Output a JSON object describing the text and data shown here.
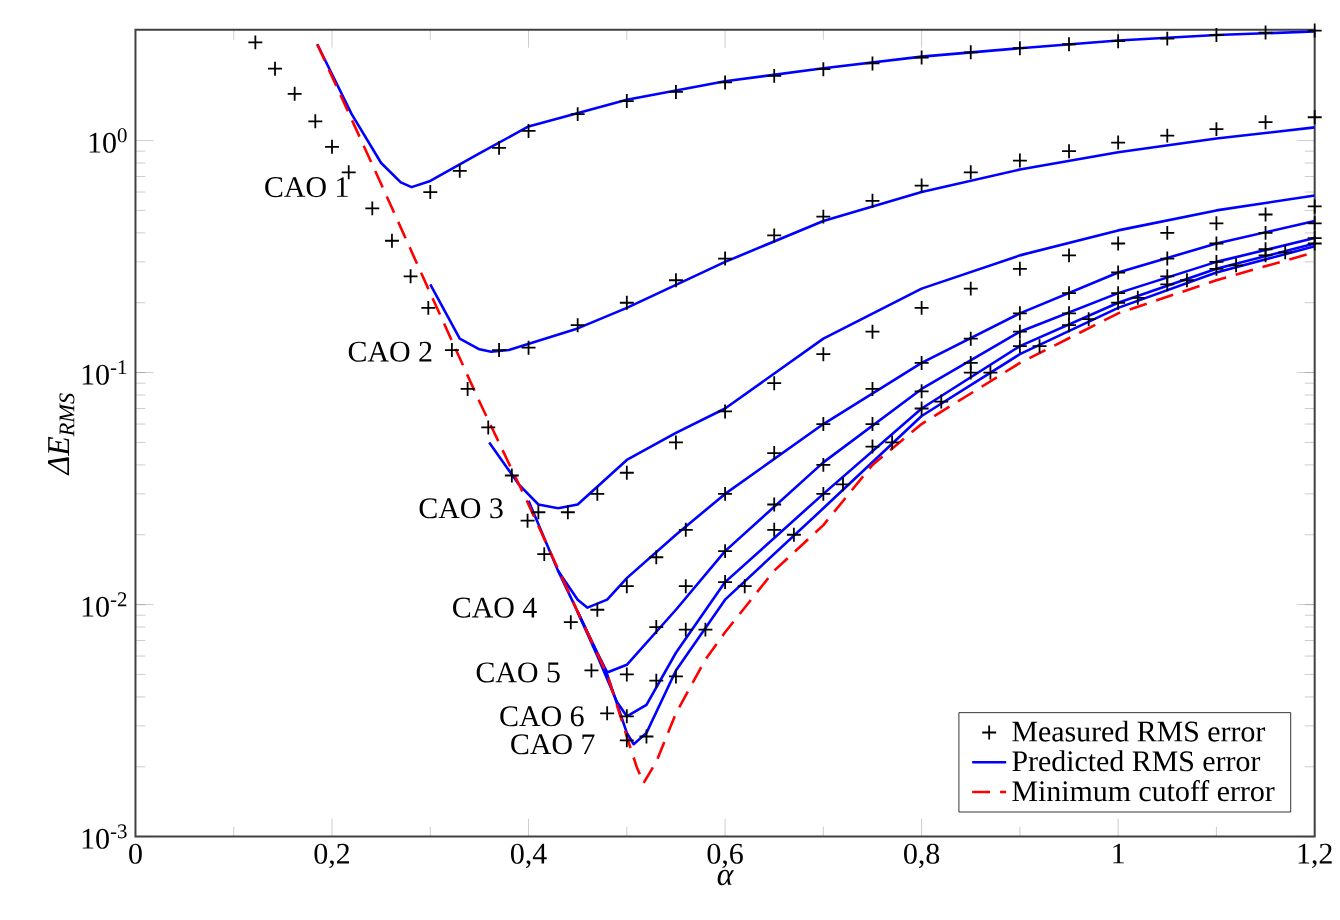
{
  "chart_data": {
    "type": "line",
    "xlabel": "α",
    "ylabel": "ΔE$_{RMS}$",
    "log": "y",
    "grid": false,
    "legend": "bottom right",
    "xlim": [
      0,
      1.2
    ],
    "ylim": [
      0.001,
      3
    ],
    "xticks": [
      0,
      {
        "value": 0.2,
        "label": "0,2"
      },
      {
        "value": 0.4,
        "label": "0,4"
      },
      {
        "value": 0.6,
        "label": "0,6"
      },
      {
        "value": 0.8,
        "label": "0,8"
      },
      1,
      {
        "value": 1.2,
        "label": "1,2"
      }
    ],
    "yticks": [
      {
        "value": 0.001,
        "label": "10$^{-3}$"
      },
      {
        "value": 0.01,
        "label": "10$^{-2}$"
      },
      {
        "value": 0.1,
        "label": "10$^{-1}$"
      },
      {
        "value": 1,
        "label": "10$^{0}$"
      }
    ],
    "series": [
      {
        "name": "Measured RMS error",
        "type": "scatter",
        "marker": "cross",
        "color": "#000000",
        "x": [
          0.122,
          0.142,
          0.162,
          0.183,
          0.2,
          0.217,
          0.241,
          0.261,
          0.28,
          0.298,
          0.322,
          0.338,
          0.359,
          0.383,
          0.399,
          0.416,
          0.443,
          0.464,
          0.48,
          0.5,
          0.3,
          0.33,
          0.37,
          0.4,
          0.45,
          0.5,
          0.55,
          0.6,
          0.65,
          0.7,
          0.75,
          0.8,
          0.85,
          0.9,
          0.95,
          1.0,
          1.05,
          1.1,
          1.15,
          1.2,
          0.37,
          0.4,
          0.45,
          0.5,
          0.55,
          0.6,
          0.65,
          0.7,
          0.75,
          0.8,
          0.85,
          0.9,
          0.95,
          1.0,
          1.05,
          1.1,
          1.15,
          1.2,
          0.41,
          0.44,
          0.47,
          0.5,
          0.55,
          0.6,
          0.65,
          0.7,
          0.75,
          0.8,
          0.85,
          0.9,
          0.95,
          1.0,
          1.05,
          1.1,
          1.15,
          1.2,
          0.47,
          0.5,
          0.53,
          0.56,
          0.6,
          0.65,
          0.7,
          0.75,
          0.8,
          0.85,
          0.9,
          0.95,
          1.0,
          1.05,
          1.1,
          1.15,
          1.2,
          0.5,
          0.53,
          0.56,
          0.6,
          0.65,
          0.7,
          0.75,
          0.8,
          0.85,
          0.9,
          0.95,
          1.0,
          1.05,
          1.1,
          1.15,
          1.2,
          0.5,
          0.53,
          0.56,
          0.6,
          0.65,
          0.7,
          0.75,
          0.8,
          0.85,
          0.9,
          0.95,
          1.0,
          1.05,
          1.1,
          1.15,
          1.2,
          0.52,
          0.55,
          0.58,
          0.62,
          0.67,
          0.72,
          0.77,
          0.82,
          0.87,
          0.92,
          0.97,
          1.02,
          1.07,
          1.12,
          1.17
        ],
        "values": [
          2.65,
          2.04,
          1.59,
          1.21,
          0.94,
          0.73,
          0.51,
          0.37,
          0.26,
          0.19,
          0.125,
          0.085,
          0.058,
          0.036,
          0.023,
          0.0165,
          0.0084,
          0.0052,
          0.0034,
          0.0026,
          0.6,
          0.74,
          0.93,
          1.1,
          1.3,
          1.48,
          1.62,
          1.78,
          1.9,
          2.03,
          2.15,
          2.28,
          2.4,
          2.5,
          2.6,
          2.68,
          2.75,
          2.85,
          2.92,
          2.98,
          0.125,
          0.128,
          0.16,
          0.2,
          0.25,
          0.31,
          0.39,
          0.47,
          0.55,
          0.64,
          0.73,
          0.82,
          0.9,
          0.98,
          1.05,
          1.12,
          1.2,
          1.26,
          0.025,
          0.025,
          0.03,
          0.037,
          0.05,
          0.068,
          0.09,
          0.12,
          0.15,
          0.19,
          0.23,
          0.28,
          0.32,
          0.36,
          0.4,
          0.44,
          0.48,
          0.52,
          0.0095,
          0.012,
          0.016,
          0.021,
          0.03,
          0.045,
          0.06,
          0.085,
          0.11,
          0.14,
          0.18,
          0.22,
          0.27,
          0.31,
          0.36,
          0.4,
          0.44,
          0.005,
          0.008,
          0.012,
          0.017,
          0.027,
          0.04,
          0.06,
          0.083,
          0.11,
          0.15,
          0.18,
          0.22,
          0.26,
          0.3,
          0.34,
          0.38,
          0.0033,
          0.0047,
          0.0078,
          0.0125,
          0.021,
          0.03,
          0.048,
          0.07,
          0.1,
          0.13,
          0.16,
          0.2,
          0.24,
          0.28,
          0.32,
          0.36,
          0.0027,
          0.0049,
          0.0078,
          0.012,
          0.02,
          0.033,
          0.05,
          0.075,
          0.1,
          0.13,
          0.17,
          0.21,
          0.25,
          0.29,
          0.33
        ]
      },
      {
        "name": "Predicted RMS error",
        "color": "#0000ff",
        "line_style": "solid",
        "marker": "none",
        "x": [
          0.185,
          0.22,
          0.25,
          0.27,
          0.281,
          0.3,
          0.35,
          0.4,
          0.5,
          0.6,
          0.7,
          0.8,
          0.9,
          1.0,
          1.1,
          1.2
        ],
        "values": [
          2.6,
          1.3,
          0.8,
          0.66,
          0.63,
          0.67,
          0.88,
          1.15,
          1.5,
          1.8,
          2.05,
          2.3,
          2.5,
          2.7,
          2.85,
          2.95
        ]
      },
      {
        "color": "#0000ff",
        "line_style": "solid",
        "marker": "none",
        "x": [
          0.3,
          0.33,
          0.35,
          0.362,
          0.38,
          0.45,
          0.5,
          0.6,
          0.7,
          0.8,
          0.9,
          1.0,
          1.1,
          1.2
        ],
        "values": [
          0.24,
          0.14,
          0.126,
          0.123,
          0.125,
          0.155,
          0.19,
          0.3,
          0.45,
          0.6,
          0.75,
          0.89,
          1.02,
          1.14
        ]
      },
      {
        "color": "#0000ff",
        "line_style": "solid",
        "marker": "none",
        "x": [
          0.36,
          0.39,
          0.41,
          0.43,
          0.45,
          0.5,
          0.55,
          0.6,
          0.7,
          0.8,
          0.9,
          1.0,
          1.1,
          1.2
        ],
        "values": [
          0.05,
          0.033,
          0.027,
          0.026,
          0.027,
          0.042,
          0.055,
          0.07,
          0.14,
          0.23,
          0.32,
          0.41,
          0.5,
          0.58
        ]
      },
      {
        "color": "#0000ff",
        "line_style": "solid",
        "marker": "none",
        "x": [
          0.4,
          0.43,
          0.45,
          0.46,
          0.48,
          0.5,
          0.55,
          0.6,
          0.7,
          0.8,
          0.9,
          1.0,
          1.1,
          1.2
        ],
        "values": [
          0.028,
          0.014,
          0.0105,
          0.0097,
          0.0105,
          0.013,
          0.02,
          0.03,
          0.06,
          0.11,
          0.18,
          0.27,
          0.36,
          0.45
        ]
      },
      {
        "color": "#0000ff",
        "line_style": "solid",
        "marker": "none",
        "x": [
          0.43,
          0.45,
          0.47,
          0.48,
          0.5,
          0.55,
          0.6,
          0.7,
          0.8,
          0.9,
          1.0,
          1.1,
          1.2
        ],
        "values": [
          0.014,
          0.0093,
          0.0062,
          0.0051,
          0.0055,
          0.0095,
          0.017,
          0.041,
          0.085,
          0.15,
          0.22,
          0.3,
          0.38
        ]
      },
      {
        "color": "#0000ff",
        "line_style": "solid",
        "marker": "none",
        "x": [
          0.45,
          0.47,
          0.49,
          0.5,
          0.52,
          0.55,
          0.6,
          0.7,
          0.8,
          0.9,
          1.0,
          1.1,
          1.2
        ],
        "values": [
          0.0093,
          0.006,
          0.0038,
          0.0033,
          0.0037,
          0.0062,
          0.0125,
          0.03,
          0.07,
          0.13,
          0.2,
          0.28,
          0.36
        ]
      },
      {
        "color": "#0000ff",
        "line_style": "solid",
        "marker": "none",
        "x": [
          0.45,
          0.48,
          0.5,
          0.507,
          0.52,
          0.55,
          0.6,
          0.7,
          0.8,
          0.9,
          1.0,
          1.1,
          1.2
        ],
        "values": [
          0.0093,
          0.005,
          0.0028,
          0.0025,
          0.0028,
          0.0052,
          0.0105,
          0.026,
          0.065,
          0.12,
          0.19,
          0.27,
          0.35
        ]
      },
      {
        "name": "Minimum cutoff error",
        "color": "#ff0000",
        "line_style": "dashed",
        "marker": "none",
        "x": [
          0.185,
          0.25,
          0.3,
          0.35,
          0.4,
          0.45,
          0.48,
          0.5,
          0.51,
          0.517,
          0.53,
          0.55,
          0.58,
          0.6,
          0.65,
          0.7,
          0.75,
          0.8,
          0.9,
          1.0,
          1.1,
          1.2
        ],
        "values": [
          2.6,
          0.65,
          0.22,
          0.075,
          0.027,
          0.0093,
          0.005,
          0.0027,
          0.002,
          0.0017,
          0.0021,
          0.0034,
          0.0058,
          0.0076,
          0.014,
          0.022,
          0.04,
          0.06,
          0.11,
          0.18,
          0.25,
          0.33
        ]
      }
    ],
    "annotations": [
      "CAO 1",
      "CAO 2",
      "CAO 3",
      "CAO 4",
      "CAO 5",
      "CAO 6",
      "CAO 7"
    ]
  }
}
